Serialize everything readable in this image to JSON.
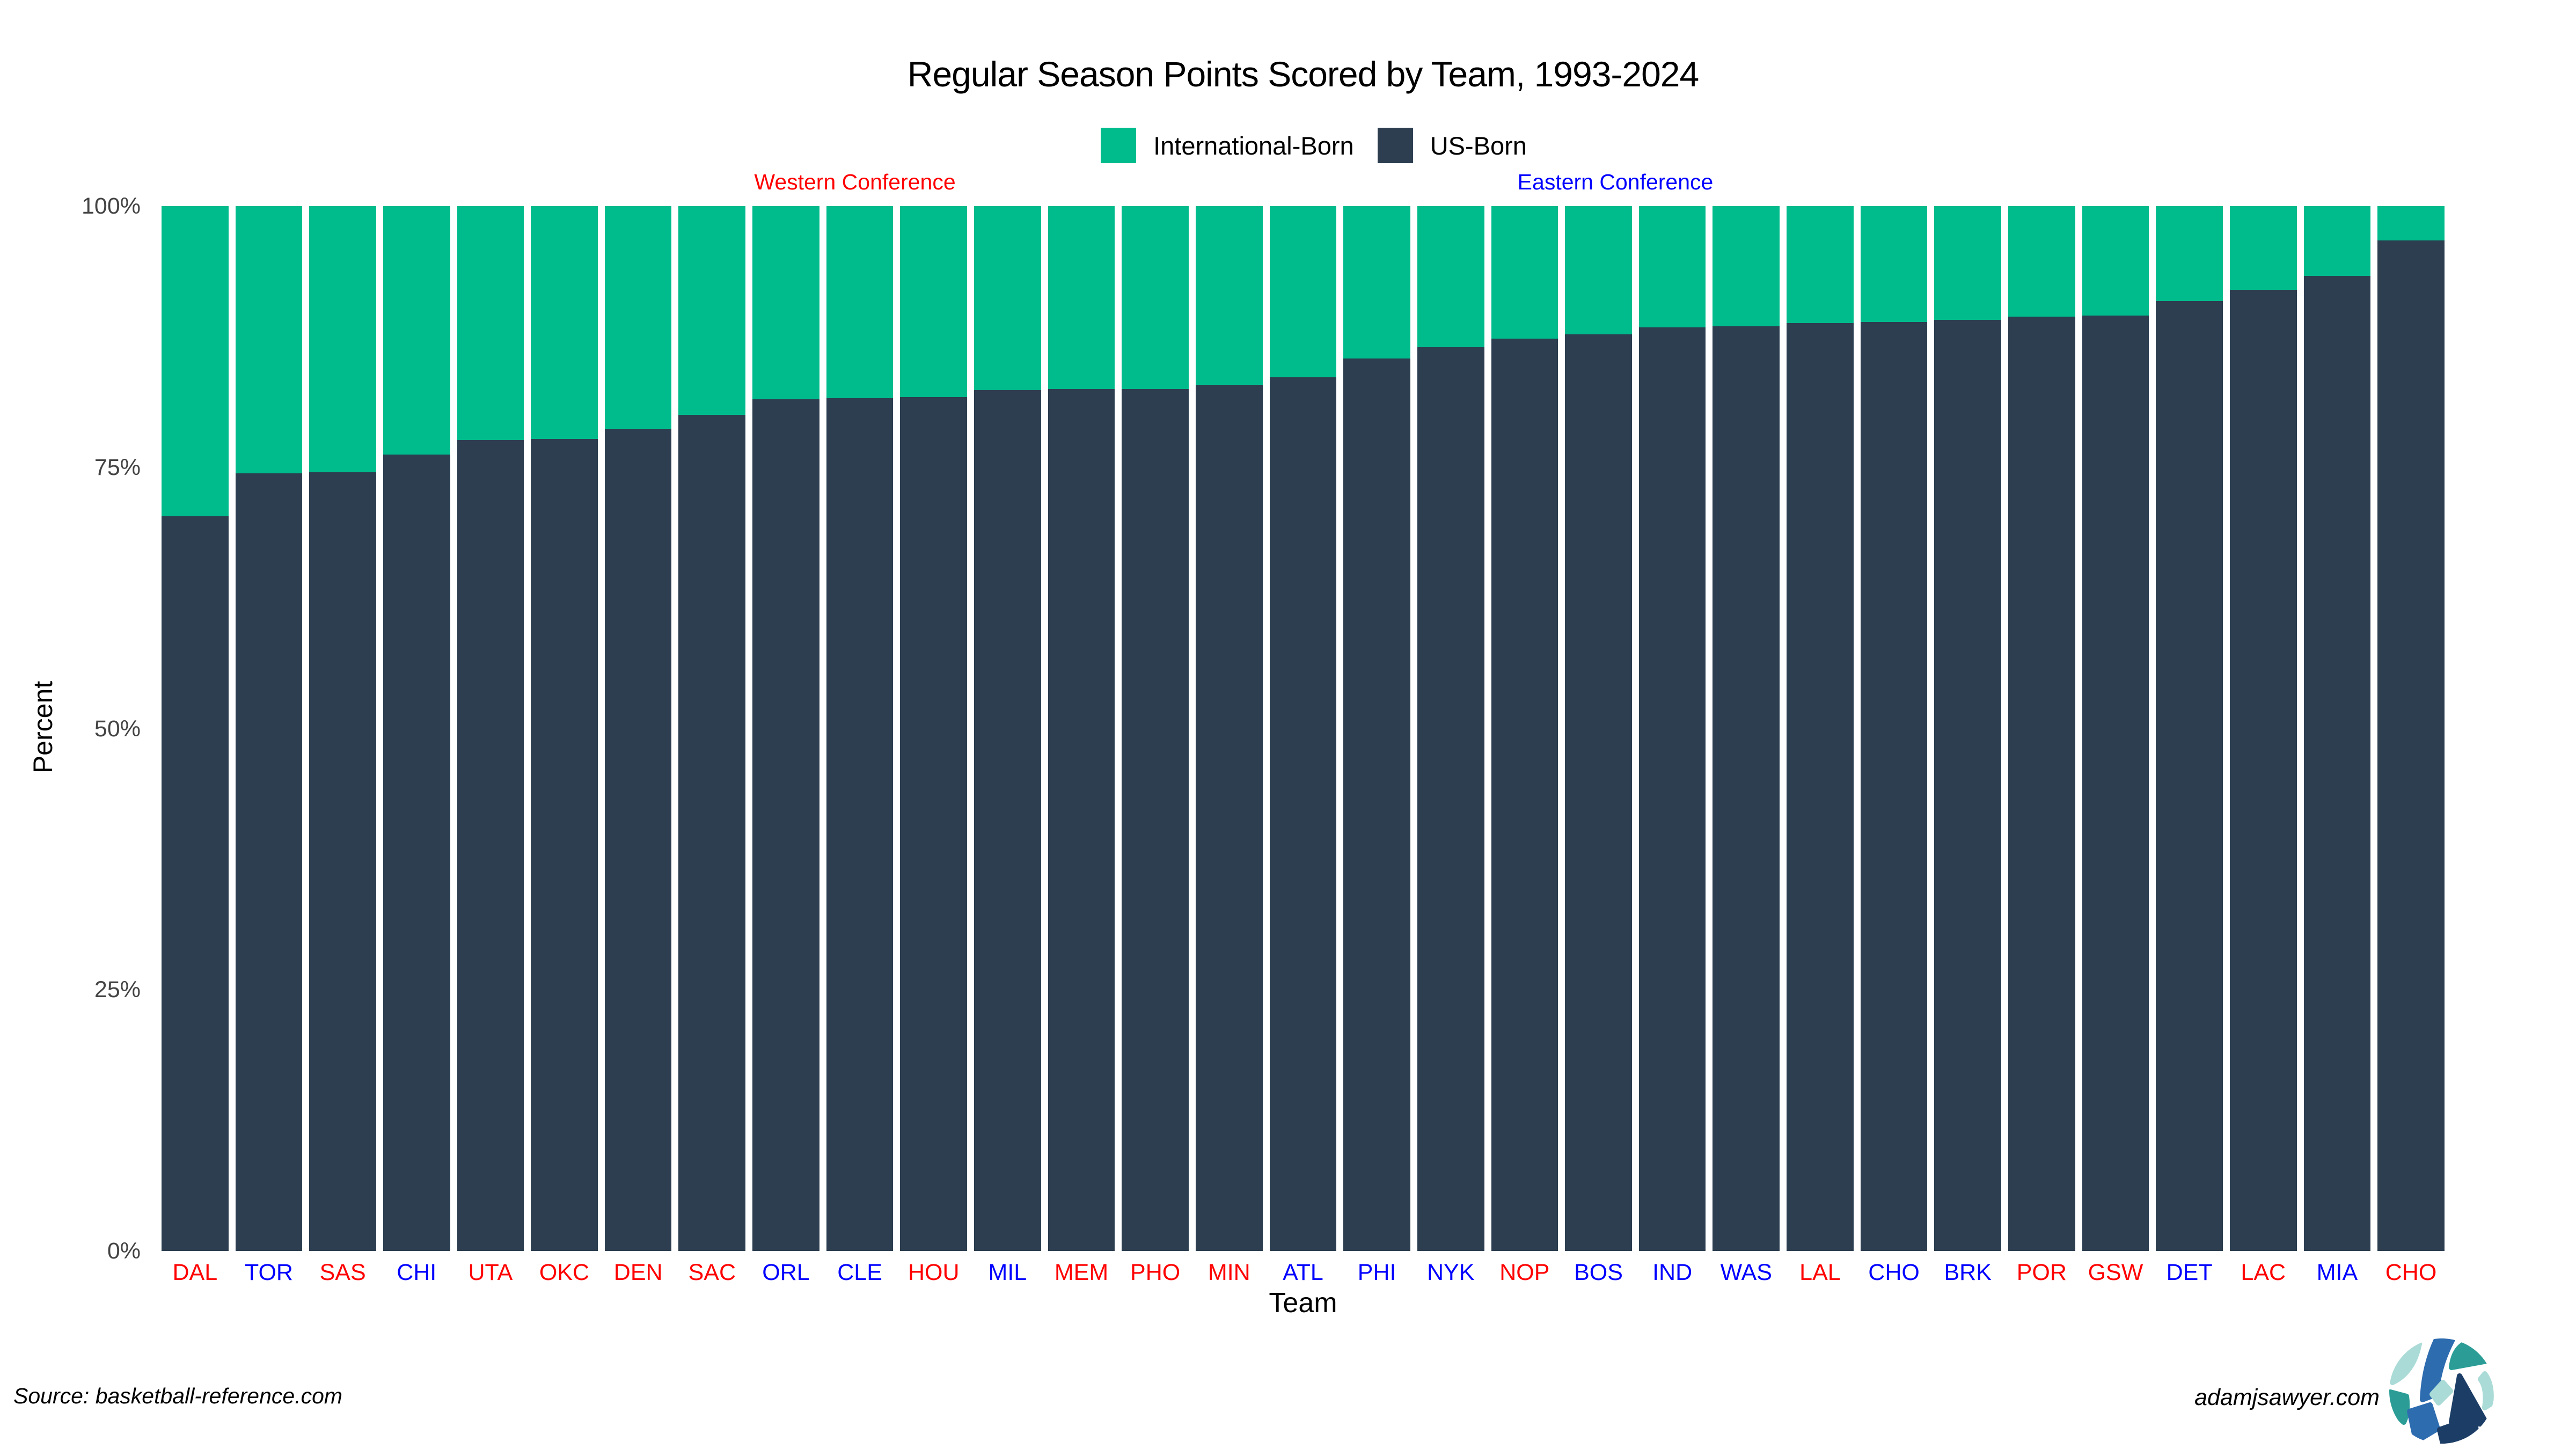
{
  "title": "Regular Season Points Scored by Team, 1993-2024",
  "legend": {
    "items": [
      {
        "label": "International-Born",
        "color": "#00bc8c"
      },
      {
        "label": "US-Born",
        "color": "#2c3e50"
      }
    ]
  },
  "annotations": {
    "western": {
      "label": "Western Conference",
      "color": "#ff0000"
    },
    "eastern": {
      "label": "Eastern Conference",
      "color": "#0000ff"
    }
  },
  "axes": {
    "y_title": "Percent",
    "x_title": "Team",
    "y_ticks": [
      {
        "label": "100%",
        "value": 100
      },
      {
        "label": "75%",
        "value": 75
      },
      {
        "label": "50%",
        "value": 50
      },
      {
        "label": "25%",
        "value": 25
      },
      {
        "label": "0%",
        "value": 0
      }
    ]
  },
  "conference_colors": {
    "W": "#ff0000",
    "E": "#0000ff"
  },
  "footer": {
    "source": "Source: basketball-reference.com",
    "site": "adamjsawyer.com"
  },
  "logo_colors": {
    "light_teal": "#aadbd7",
    "teal": "#2b9d96",
    "blue": "#2e6cb0",
    "navy": "#1c3d66"
  },
  "chart_data": {
    "type": "bar",
    "stacked": true,
    "title": "Regular Season Points Scored by Team, 1993-2024",
    "xlabel": "Team",
    "ylabel": "Percent",
    "ylim": [
      0,
      100
    ],
    "value_unit": "percent of points scored",
    "grid": false,
    "legend_position": "top-center",
    "categories": [
      "DAL",
      "TOR",
      "SAS",
      "CHI",
      "UTA",
      "OKC",
      "DEN",
      "SAC",
      "ORL",
      "CLE",
      "HOU",
      "MIL",
      "MEM",
      "PHO",
      "MIN",
      "ATL",
      "PHI",
      "NYK",
      "NOP",
      "BOS",
      "IND",
      "WAS",
      "LAL",
      "CHO",
      "BRK",
      "POR",
      "GSW",
      "DET",
      "LAC",
      "MIA",
      "CHO"
    ],
    "conferences": [
      "W",
      "E",
      "W",
      "E",
      "W",
      "W",
      "W",
      "W",
      "E",
      "E",
      "W",
      "E",
      "W",
      "W",
      "W",
      "E",
      "E",
      "E",
      "W",
      "E",
      "E",
      "E",
      "W",
      "E",
      "E",
      "W",
      "W",
      "E",
      "W",
      "E",
      "W"
    ],
    "series": [
      {
        "name": "International-Born",
        "color": "#00bc8c",
        "values": [
          29.7,
          25.6,
          25.5,
          23.8,
          22.4,
          22.3,
          21.3,
          20.0,
          18.5,
          18.4,
          18.3,
          17.6,
          17.5,
          17.5,
          17.1,
          16.4,
          14.6,
          13.5,
          12.7,
          12.3,
          11.6,
          11.5,
          11.2,
          11.1,
          10.9,
          10.6,
          10.5,
          9.1,
          8.0,
          6.7,
          3.3
        ]
      },
      {
        "name": "US-Born",
        "color": "#2c3e50",
        "values": [
          70.3,
          74.4,
          74.5,
          76.2,
          77.6,
          77.7,
          78.7,
          80.0,
          81.5,
          81.6,
          81.7,
          82.4,
          82.5,
          82.5,
          82.9,
          83.6,
          85.4,
          86.5,
          87.3,
          87.7,
          88.4,
          88.5,
          88.8,
          88.9,
          89.1,
          89.4,
          89.5,
          90.9,
          92.0,
          93.3,
          96.7
        ]
      }
    ]
  }
}
